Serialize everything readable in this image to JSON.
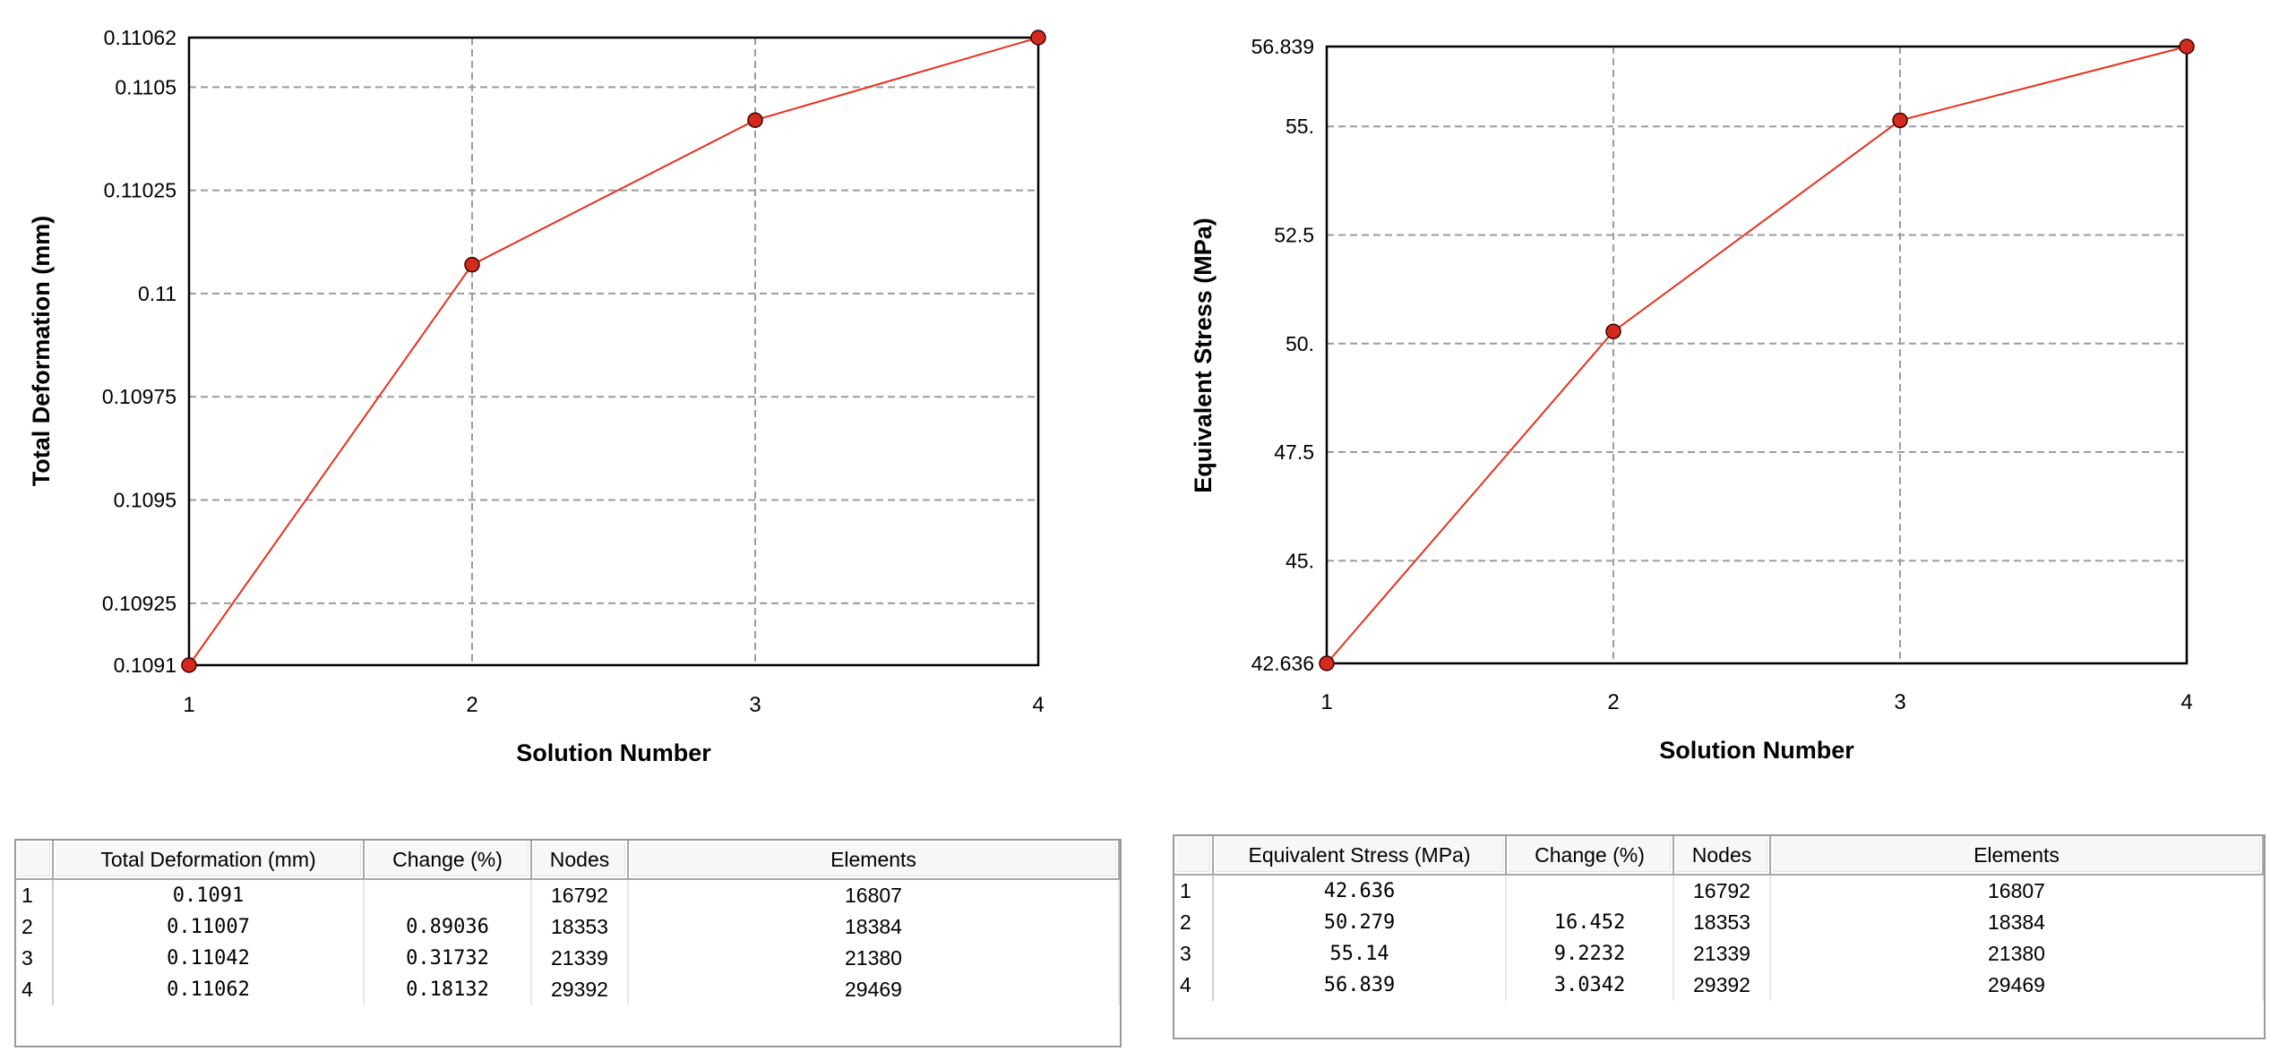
{
  "chart_data": [
    {
      "type": "line",
      "x": [
        1,
        2,
        3,
        4
      ],
      "series": [
        {
          "values": [
            0.1091,
            0.11007,
            0.11042,
            0.11062
          ],
          "color": "#e8301c",
          "marker_color": "#d42a1e"
        }
      ],
      "xlabel": "Solution Number",
      "ylabel": "Total Deformation (mm)",
      "xlim": [
        1,
        4
      ],
      "ylim": [
        0.1091,
        0.11062
      ],
      "x_ticks": [
        "1",
        "2",
        "3",
        "4"
      ],
      "y_ticks": [
        {
          "value": 0.1091,
          "label": "0.1091"
        },
        {
          "value": 0.10925,
          "label": "0.10925"
        },
        {
          "value": 0.1095,
          "label": "0.1095"
        },
        {
          "value": 0.10975,
          "label": "0.10975"
        },
        {
          "value": 0.11,
          "label": "0.11"
        },
        {
          "value": 0.11025,
          "label": "0.11025"
        },
        {
          "value": 0.1105,
          "label": "0.1105"
        },
        {
          "value": 0.11062,
          "label": "0.11062"
        }
      ],
      "grid": true
    },
    {
      "type": "line",
      "x": [
        1,
        2,
        3,
        4
      ],
      "series": [
        {
          "values": [
            42.636,
            50.279,
            55.14,
            56.839
          ],
          "color": "#e8301c",
          "marker_color": "#d42a1e"
        }
      ],
      "xlabel": "Solution Number",
      "ylabel": "Equivalent Stress (MPa)",
      "xlim": [
        1,
        4
      ],
      "ylim": [
        42.636,
        56.839
      ],
      "x_ticks": [
        "1",
        "2",
        "3",
        "4"
      ],
      "y_ticks": [
        {
          "value": 42.636,
          "label": "42.636"
        },
        {
          "value": 45,
          "label": "45."
        },
        {
          "value": 47.5,
          "label": "47.5"
        },
        {
          "value": 50,
          "label": "50."
        },
        {
          "value": 52.5,
          "label": "52.5"
        },
        {
          "value": 55,
          "label": "55."
        },
        {
          "value": 56.839,
          "label": "56.839"
        }
      ],
      "grid": true
    }
  ],
  "tables": [
    {
      "headers": [
        "Total Deformation (mm)",
        "Change (%)",
        "Nodes",
        "Elements"
      ],
      "rows": [
        {
          "index": "1",
          "value": "0.1091",
          "change": "",
          "nodes": "16792",
          "elements": "16807"
        },
        {
          "index": "2",
          "value": "0.11007",
          "change": "0.89036",
          "nodes": "18353",
          "elements": "18384"
        },
        {
          "index": "3",
          "value": "0.11042",
          "change": "0.31732",
          "nodes": "21339",
          "elements": "21380"
        },
        {
          "index": "4",
          "value": "0.11062",
          "change": "0.18132",
          "nodes": "29392",
          "elements": "29469"
        }
      ]
    },
    {
      "headers": [
        "Equivalent Stress (MPa)",
        "Change (%)",
        "Nodes",
        "Elements"
      ],
      "rows": [
        {
          "index": "1",
          "value": "42.636",
          "change": "",
          "nodes": "16792",
          "elements": "16807"
        },
        {
          "index": "2",
          "value": "50.279",
          "change": "16.452",
          "nodes": "18353",
          "elements": "18384"
        },
        {
          "index": "3",
          "value": "55.14",
          "change": "9.2232",
          "nodes": "21339",
          "elements": "21380"
        },
        {
          "index": "4",
          "value": "56.839",
          "change": "3.0342",
          "nodes": "29392",
          "elements": "29469"
        }
      ]
    }
  ]
}
